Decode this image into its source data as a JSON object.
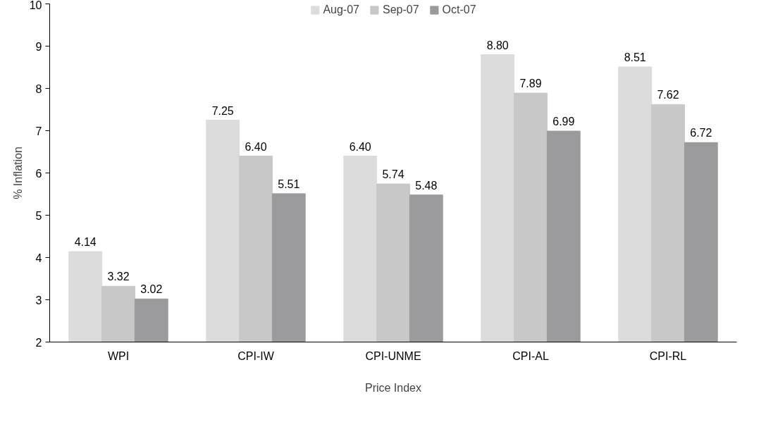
{
  "chart_data": {
    "type": "bar",
    "xlabel": "Price Index",
    "ylabel": "% Inflation",
    "categories": [
      "WPI",
      "CPI-IW",
      "CPI-UNME",
      "CPI-AL",
      "CPI-RL"
    ],
    "series": [
      {
        "name": "Aug-07",
        "color": "#dcdcdc",
        "values": [
          4.14,
          7.25,
          6.4,
          8.8,
          8.51
        ],
        "value_labels": [
          "4.14",
          "7.25",
          "6.40",
          "8.80",
          "8.51"
        ]
      },
      {
        "name": "Sep-07",
        "color": "#c8c8c8",
        "values": [
          3.32,
          6.4,
          5.74,
          7.89,
          7.62
        ],
        "value_labels": [
          "3.32",
          "6.40",
          "5.74",
          "7.89",
          "7.62"
        ]
      },
      {
        "name": "Oct-07",
        "color": "#9b9b9d",
        "values": [
          3.02,
          5.51,
          5.48,
          6.99,
          6.72
        ],
        "value_labels": [
          "3.02",
          "5.51",
          "5.48",
          "6.99",
          "6.72"
        ]
      }
    ],
    "ylim": [
      2,
      10
    ],
    "yticks": [
      2,
      3,
      4,
      5,
      6,
      7,
      8,
      9,
      10
    ],
    "grid": false,
    "legend": "top"
  }
}
